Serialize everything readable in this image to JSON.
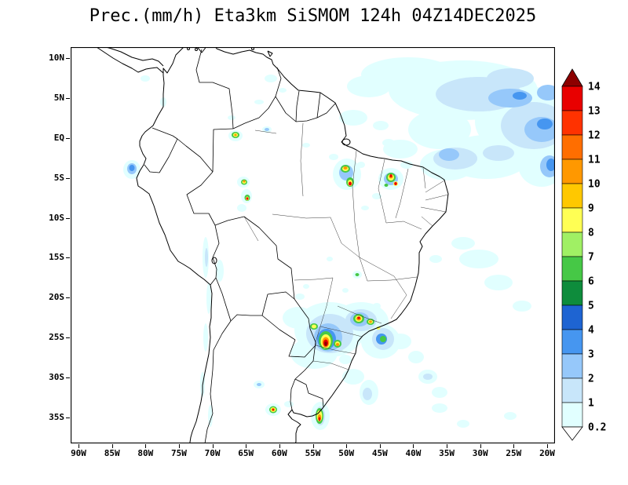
{
  "title": "Prec.(mm/h) Eta3km SiSMOM 124h 04Z14DEC2025",
  "axes": {
    "lat_labels": [
      "10N",
      "5N",
      "EQ",
      "5S",
      "10S",
      "15S",
      "20S",
      "25S",
      "30S",
      "35S"
    ],
    "lon_labels": [
      "90W",
      "85W",
      "80W",
      "75W",
      "70W",
      "65W",
      "60W",
      "55W",
      "50W",
      "45W",
      "40W",
      "35W",
      "30W",
      "25W",
      "20W"
    ]
  },
  "colorbar": {
    "levels_low_to_high": [
      "0.2",
      "1",
      "2",
      "3",
      "4",
      "5",
      "6",
      "7",
      "8",
      "9",
      "10",
      "11",
      "12",
      "13",
      "14"
    ],
    "under_color": "#FFFFFF"
  },
  "palette_low_to_high": [
    "#E1FFFF",
    "#C8E6FA",
    "#96C8FA",
    "#4696F0",
    "#1E64D2",
    "#0E8C3C",
    "#46C846",
    "#A0F064",
    "#FFFF54",
    "#FFC800",
    "#FF9800",
    "#FF6E00",
    "#FF3200",
    "#E80000",
    "#8C0000"
  ],
  "chart_data": {
    "type": "heatmap",
    "title": "Prec.(mm/h) Eta3km SiSMOM 124h 04Z14DEC2025",
    "variable": "Prec.",
    "units": "mm/h",
    "colorbar_levels": [
      0.2,
      1,
      2,
      3,
      4,
      5,
      6,
      7,
      8,
      9,
      10,
      11,
      12,
      13,
      14
    ],
    "over_level_color": "#8C0000",
    "under_level_color": "#FFFFFF",
    "x_tick_labels": [
      "90W",
      "85W",
      "80W",
      "75W",
      "70W",
      "65W",
      "60W",
      "55W",
      "50W",
      "45W",
      "40W",
      "35W",
      "30W",
      "25W",
      "20W"
    ],
    "y_tick_labels": [
      "10N",
      "5N",
      "EQ",
      "5S",
      "10S",
      "15S",
      "20S",
      "25S",
      "30S",
      "35S"
    ],
    "legend_position": "right",
    "region": "South America"
  }
}
